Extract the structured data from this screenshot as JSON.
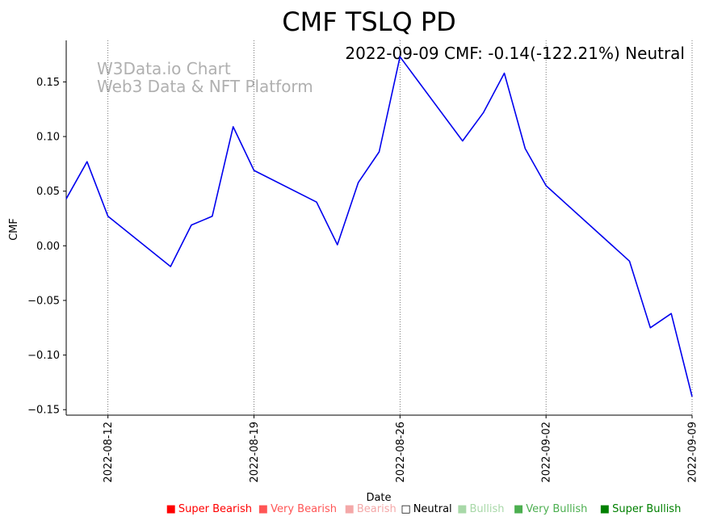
{
  "chart_data": {
    "type": "line",
    "title": "CMF TSLQ PD",
    "status_line": "2022-09-09 CMF: -0.14(-122.21%) Neutral",
    "watermark": [
      "W3Data.io Chart",
      "Web3 Data & NFT Platform"
    ],
    "xlabel": "Date",
    "ylabel": "CMF",
    "ylim": [
      -0.155,
      0.188
    ],
    "yticks": [
      -0.15,
      -0.1,
      -0.05,
      0.0,
      0.05,
      0.1,
      0.15
    ],
    "ytick_labels": [
      "−0.15",
      "−0.10",
      "−0.05",
      "0.00",
      "0.05",
      "0.10",
      "0.15"
    ],
    "xlim": [
      -2,
      28
    ],
    "xticks": [
      0,
      7,
      14,
      21,
      28
    ],
    "xtick_labels": [
      "2022-08-12",
      "2022-08-19",
      "2022-08-26",
      "2022-09-02",
      "2022-09-09"
    ],
    "vertical_gridlines": true,
    "series": [
      {
        "name": "CMF",
        "color": "#0000ee",
        "x": [
          -2,
          -1,
          0,
          3,
          4,
          5,
          6,
          7,
          10,
          11,
          12,
          13,
          14,
          17,
          18,
          19,
          20,
          21,
          25,
          26,
          27,
          28
        ],
        "values": [
          0.043,
          0.077,
          0.027,
          -0.019,
          0.019,
          0.027,
          0.109,
          0.069,
          0.04,
          0.001,
          0.058,
          0.086,
          0.173,
          0.096,
          0.122,
          0.158,
          0.089,
          0.055,
          -0.014,
          -0.075,
          -0.062,
          -0.138
        ]
      }
    ],
    "legend": [
      {
        "label": "Super Bearish",
        "color": "#ff0000",
        "marker": "■"
      },
      {
        "label": "Very Bearish",
        "color": "#ff5555",
        "marker": "■"
      },
      {
        "label": "Bearish",
        "color": "#f4a8a8",
        "marker": "■"
      },
      {
        "label": "Neutral",
        "color": "#000000",
        "marker": "□"
      },
      {
        "label": "Bullish",
        "color": "#a8d8a8",
        "marker": "■"
      },
      {
        "label": "Very Bullish",
        "color": "#4caf50",
        "marker": "■"
      },
      {
        "label": "Super Bullish",
        "color": "#008000",
        "marker": "■"
      }
    ]
  }
}
